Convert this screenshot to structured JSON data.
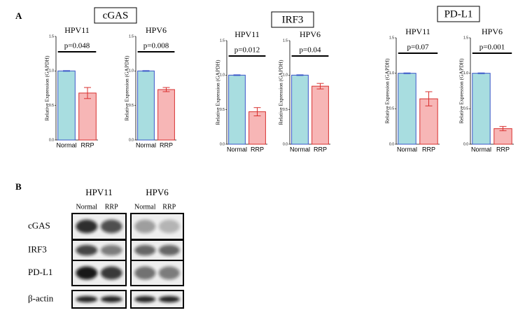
{
  "panels": {
    "a": "A",
    "b": "B"
  },
  "gene_titles": [
    "cGAS",
    "IRF3",
    "PD-L1"
  ],
  "chart_data": [
    {
      "type": "bar",
      "title": "HPV11",
      "ylabel": "Relative Expression (GAPDH)",
      "categories": [
        "Normal",
        "RRP"
      ],
      "values": [
        1.0,
        0.68
      ],
      "errors": [
        0.005,
        0.08
      ],
      "colors": [
        "#a8dde0",
        "#f7b6b6"
      ],
      "edge_colors": [
        "#3a56c8",
        "#d8302f"
      ],
      "ylim": [
        0,
        1.5
      ],
      "yticks": [
        {
          "value": 0,
          "label": "0.0"
        },
        0.5,
        {
          "value": 1,
          "label": "1.0"
        },
        1.5
      ],
      "annotation": "p=0.048"
    },
    {
      "type": "bar",
      "title": "HPV6",
      "ylabel": "Relative Expression (GAPDH)",
      "categories": [
        "Normal",
        "RRP"
      ],
      "values": [
        1.0,
        0.73
      ],
      "errors": [
        0.005,
        0.03
      ],
      "colors": [
        "#a8dde0",
        "#f7b6b6"
      ],
      "edge_colors": [
        "#3a56c8",
        "#d8302f"
      ],
      "ylim": [
        0,
        1.5
      ],
      "yticks": [
        {
          "value": 0,
          "label": "0.0"
        },
        0.5,
        {
          "value": 1,
          "label": "1.0"
        },
        1.5
      ],
      "annotation": "p=0.008"
    },
    {
      "type": "bar",
      "title": "HPV11",
      "ylabel": "Relative Expression (GAPDH)",
      "categories": [
        "Normal",
        "RRP"
      ],
      "values": [
        1.0,
        0.47
      ],
      "errors": [
        0.005,
        0.06
      ],
      "colors": [
        "#a8dde0",
        "#f7b6b6"
      ],
      "edge_colors": [
        "#3a56c8",
        "#d8302f"
      ],
      "ylim": [
        0,
        1.5
      ],
      "yticks": [
        {
          "value": 0,
          "label": "0.0"
        },
        0.5,
        {
          "value": 1,
          "label": "1.0"
        },
        1.5
      ],
      "annotation": "p=0.012"
    },
    {
      "type": "bar",
      "title": "HPV6",
      "ylabel": "Relative Expression (GAPDH)",
      "categories": [
        "Normal",
        "RRP"
      ],
      "values": [
        1.0,
        0.84
      ],
      "errors": [
        0.005,
        0.04
      ],
      "colors": [
        "#a8dde0",
        "#f7b6b6"
      ],
      "edge_colors": [
        "#3a56c8",
        "#d8302f"
      ],
      "ylim": [
        0,
        1.5
      ],
      "yticks": [
        {
          "value": 0,
          "label": "0.0"
        },
        0.5,
        {
          "value": 1,
          "label": "1.0"
        },
        1.5
      ],
      "annotation": "p=0.04"
    },
    {
      "type": "bar",
      "title": "HPV11",
      "ylabel": "Relative Expression (GAPDH)",
      "categories": [
        "Normal",
        "RRP"
      ],
      "values": [
        1.0,
        0.64
      ],
      "errors": [
        0.005,
        0.1
      ],
      "colors": [
        "#a8dde0",
        "#f7b6b6"
      ],
      "edge_colors": [
        "#3a56c8",
        "#d8302f"
      ],
      "ylim": [
        0,
        1.5
      ],
      "yticks": [
        {
          "value": 0,
          "label": "0.0"
        },
        0.5,
        {
          "value": 1,
          "label": "1.0"
        },
        1.5
      ],
      "annotation": "p=0.07"
    },
    {
      "type": "bar",
      "title": "HPV6",
      "ylabel": "Relative Expression (GAPDH)",
      "categories": [
        "Normal",
        "RRP"
      ],
      "values": [
        1.0,
        0.22
      ],
      "errors": [
        0.005,
        0.03
      ],
      "colors": [
        "#a8dde0",
        "#f7b6b6"
      ],
      "edge_colors": [
        "#3a56c8",
        "#d8302f"
      ],
      "ylim": [
        0,
        1.5
      ],
      "yticks": [
        {
          "value": 0,
          "label": "0.0"
        },
        0.5,
        {
          "value": 1,
          "label": "1.0"
        },
        1.5
      ],
      "annotation": "p=0.001"
    }
  ],
  "blot": {
    "groups": [
      "HPV11",
      "HPV6"
    ],
    "lanes": [
      "Normal",
      "RRP"
    ],
    "rows": [
      "cGAS",
      "IRF3",
      "PD-L1",
      "β-actin"
    ]
  }
}
